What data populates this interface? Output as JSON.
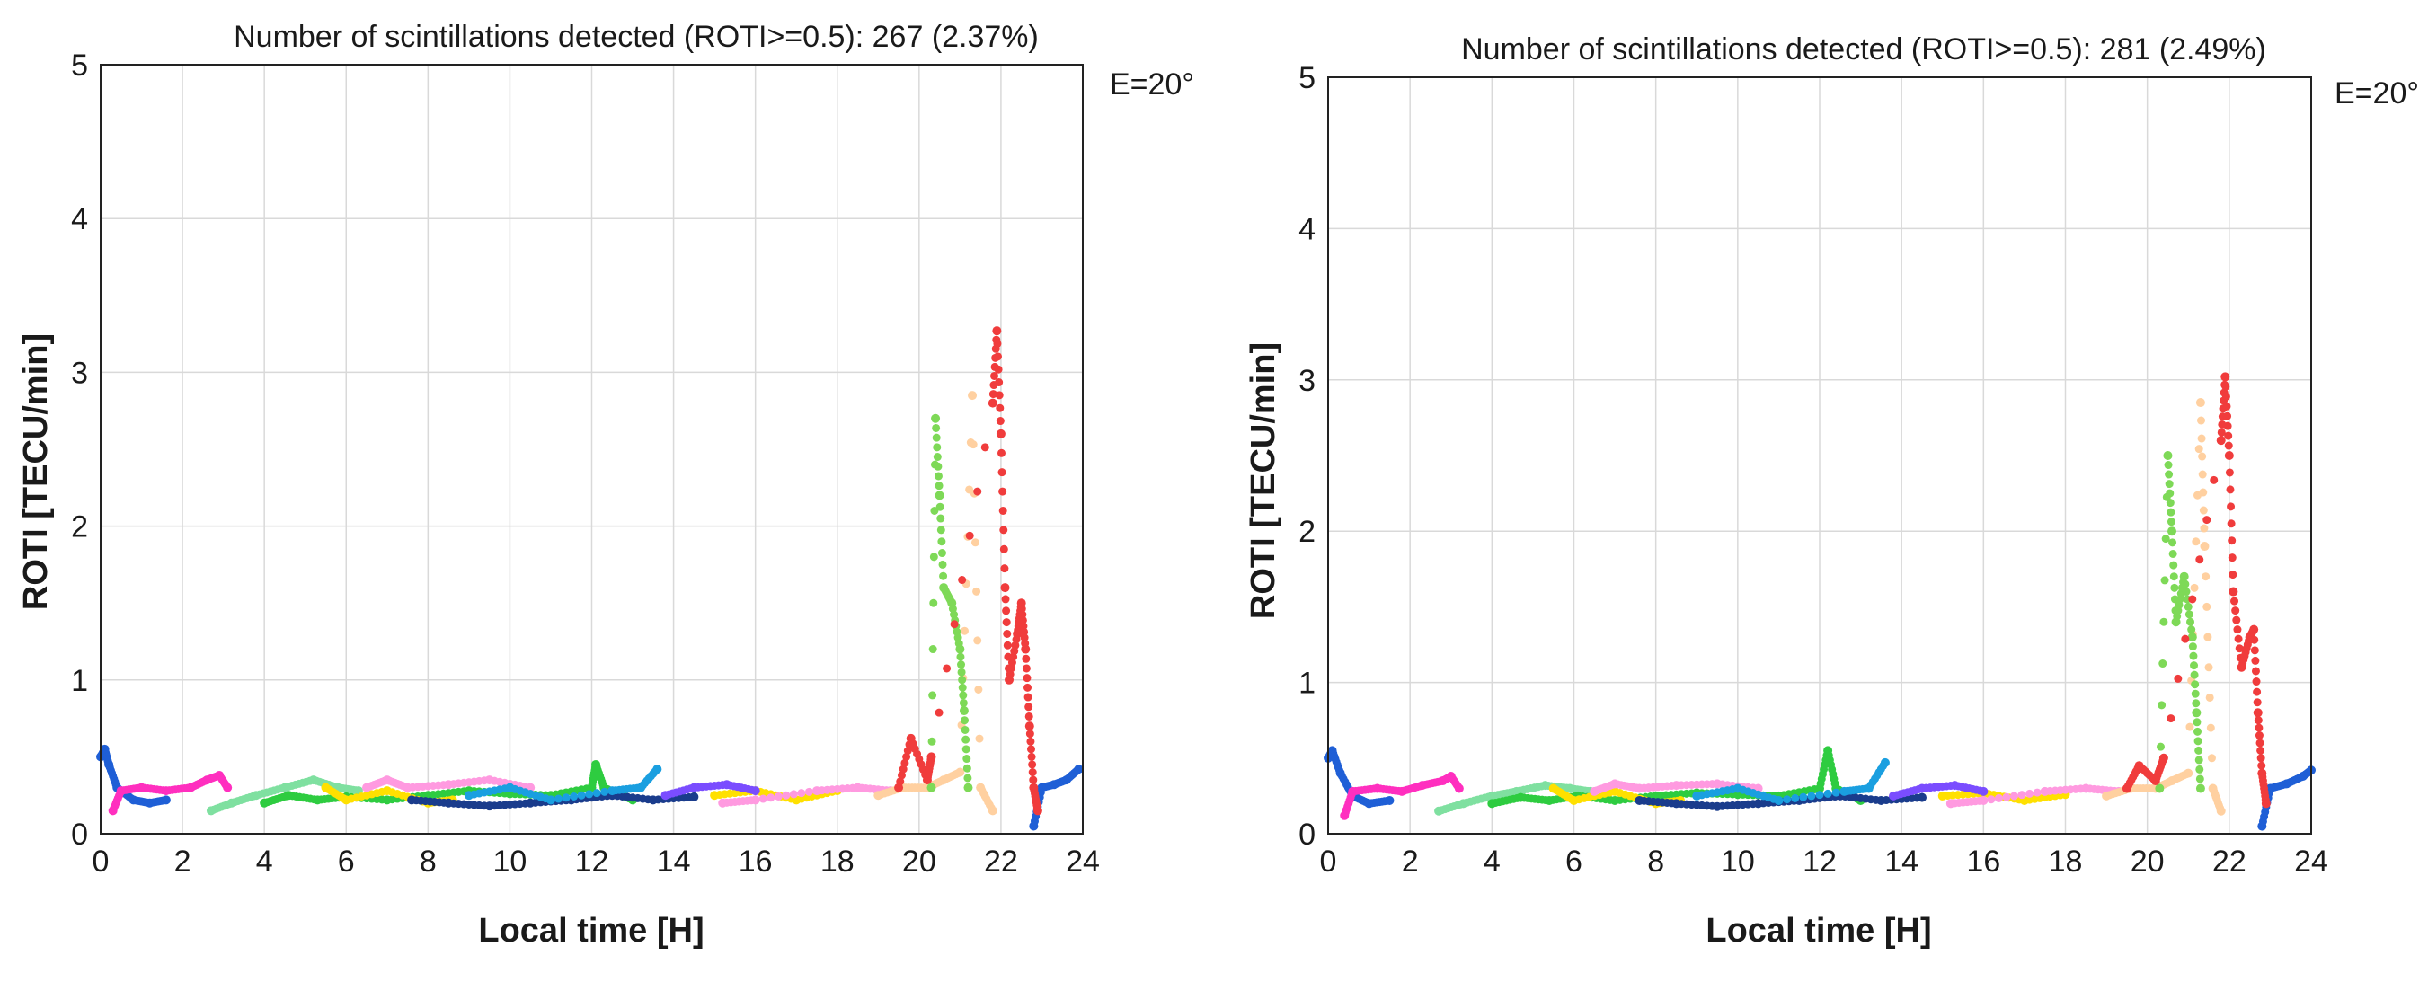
{
  "chart_data": [
    {
      "type": "scatter",
      "title": "Number of scintillations detected (ROTI>=0.5): 267 (2.37%)",
      "xlabel": "Local time [H]",
      "ylabel": "ROTI [TECU/min]",
      "xlim": [
        0,
        24
      ],
      "ylim": [
        0,
        5
      ],
      "xticks": [
        0,
        2,
        4,
        6,
        8,
        10,
        12,
        14,
        16,
        18,
        20,
        22,
        24
      ],
      "yticks": [
        0,
        1,
        2,
        3,
        4,
        5
      ],
      "grid": true,
      "annotation": "E=20°",
      "series": [
        {
          "name": "sat-blue-dark",
          "color": "#1f5fd6",
          "points": [
            [
              0,
              0.5
            ],
            [
              0.1,
              0.55
            ],
            [
              0.2,
              0.45
            ],
            [
              0.4,
              0.3
            ],
            [
              0.8,
              0.22
            ],
            [
              1.2,
              0.2
            ],
            [
              1.6,
              0.22
            ],
            [
              22.8,
              0.05
            ],
            [
              23,
              0.3
            ],
            [
              23.3,
              0.32
            ],
            [
              23.6,
              0.35
            ],
            [
              23.9,
              0.42
            ]
          ]
        },
        {
          "name": "sat-magenta",
          "color": "#ff2fbf",
          "points": [
            [
              0.3,
              0.15
            ],
            [
              0.5,
              0.28
            ],
            [
              1,
              0.3
            ],
            [
              1.6,
              0.28
            ],
            [
              2.2,
              0.3
            ],
            [
              2.6,
              0.35
            ],
            [
              2.9,
              0.38
            ],
            [
              3.1,
              0.3
            ]
          ]
        },
        {
          "name": "sat-green-light",
          "color": "#7fe0a0",
          "points": [
            [
              2.7,
              0.15
            ],
            [
              3.2,
              0.2
            ],
            [
              3.8,
              0.25
            ],
            [
              4.5,
              0.3
            ],
            [
              5.2,
              0.35
            ],
            [
              5.8,
              0.3
            ],
            [
              6.3,
              0.28
            ]
          ]
        },
        {
          "name": "sat-green",
          "color": "#2ecc40",
          "points": [
            [
              4,
              0.2
            ],
            [
              4.6,
              0.25
            ],
            [
              5.3,
              0.22
            ],
            [
              6,
              0.24
            ],
            [
              7,
              0.22
            ],
            [
              8,
              0.25
            ],
            [
              9,
              0.28
            ],
            [
              10,
              0.26
            ],
            [
              11,
              0.25
            ],
            [
              12,
              0.3
            ],
            [
              12.1,
              0.45
            ],
            [
              12.3,
              0.3
            ],
            [
              13,
              0.22
            ]
          ]
        },
        {
          "name": "sat-yellow",
          "color": "#ffe000",
          "points": [
            [
              5.5,
              0.3
            ],
            [
              6,
              0.22
            ],
            [
              7,
              0.28
            ],
            [
              8,
              0.2
            ],
            [
              8.6,
              0.22
            ],
            [
              15,
              0.25
            ],
            [
              16,
              0.28
            ],
            [
              17,
              0.22
            ],
            [
              18,
              0.28
            ]
          ]
        },
        {
          "name": "sat-pink",
          "color": "#ff9ae0",
          "points": [
            [
              6.5,
              0.3
            ],
            [
              7,
              0.35
            ],
            [
              7.5,
              0.3
            ],
            [
              8.5,
              0.32
            ],
            [
              9.5,
              0.35
            ],
            [
              10.5,
              0.3
            ],
            [
              15.2,
              0.2
            ],
            [
              16,
              0.22
            ],
            [
              17.5,
              0.28
            ],
            [
              18.5,
              0.3
            ],
            [
              19.3,
              0.28
            ]
          ]
        },
        {
          "name": "sat-navy",
          "color": "#1a3c8c",
          "points": [
            [
              7.6,
              0.22
            ],
            [
              8.5,
              0.2
            ],
            [
              9.5,
              0.18
            ],
            [
              10.5,
              0.2
            ],
            [
              11.5,
              0.22
            ],
            [
              12.5,
              0.25
            ],
            [
              13.5,
              0.22
            ],
            [
              14.5,
              0.24
            ]
          ]
        },
        {
          "name": "sat-cyan",
          "color": "#1a9fe0",
          "points": [
            [
              9,
              0.25
            ],
            [
              10,
              0.3
            ],
            [
              11,
              0.22
            ],
            [
              12.5,
              0.28
            ],
            [
              13.2,
              0.3
            ],
            [
              13.6,
              0.42
            ]
          ]
        },
        {
          "name": "sat-purple",
          "color": "#7a4dff",
          "points": [
            [
              13.8,
              0.25
            ],
            [
              14.5,
              0.3
            ],
            [
              15.3,
              0.32
            ],
            [
              16,
              0.28
            ]
          ]
        },
        {
          "name": "sat-peach",
          "color": "#ffd0a0",
          "points": [
            [
              19,
              0.25
            ],
            [
              19.6,
              0.3
            ],
            [
              20.2,
              0.3
            ],
            [
              20.6,
              0.35
            ],
            [
              21,
              0.4
            ],
            [
              21.3,
              2.85
            ],
            [
              21.5,
              0.3
            ],
            [
              21.8,
              0.15
            ]
          ]
        },
        {
          "name": "sat-lime",
          "color": "#7ed957",
          "points": [
            [
              20.3,
              0.3
            ],
            [
              20.4,
              2.7
            ],
            [
              20.5,
              2.2
            ],
            [
              20.6,
              1.6
            ],
            [
              20.8,
              1.5
            ],
            [
              21,
              1.2
            ],
            [
              21.1,
              0.8
            ],
            [
              21.2,
              0.3
            ]
          ]
        },
        {
          "name": "sat-red",
          "color": "#f03c3c",
          "points": [
            [
              19.5,
              0.3
            ],
            [
              19.8,
              0.62
            ],
            [
              20.2,
              0.35
            ],
            [
              20.3,
              0.5
            ],
            [
              21.8,
              2.8
            ],
            [
              21.9,
              3.27
            ],
            [
              22,
              2.6
            ],
            [
              22.1,
              1.6
            ],
            [
              22.2,
              1.0
            ],
            [
              22.4,
              1.3
            ],
            [
              22.5,
              1.5
            ],
            [
              22.6,
              1.2
            ],
            [
              22.7,
              0.7
            ],
            [
              22.8,
              0.3
            ],
            [
              22.9,
              0.15
            ]
          ]
        }
      ]
    },
    {
      "type": "scatter",
      "title": "Number of scintillations detected (ROTI>=0.5): 281 (2.49%)",
      "xlabel": "Local time [H]",
      "ylabel": "ROTI [TECU/min]",
      "xlim": [
        0,
        24
      ],
      "ylim": [
        0,
        5
      ],
      "xticks": [
        0,
        2,
        4,
        6,
        8,
        10,
        12,
        14,
        16,
        18,
        20,
        22,
        24
      ],
      "yticks": [
        0,
        1,
        2,
        3,
        4,
        5
      ],
      "grid": true,
      "annotation": "E=20°",
      "series": [
        {
          "name": "sat-blue-dark",
          "color": "#1f5fd6",
          "points": [
            [
              0,
              0.5
            ],
            [
              0.1,
              0.55
            ],
            [
              0.3,
              0.4
            ],
            [
              0.6,
              0.25
            ],
            [
              1,
              0.2
            ],
            [
              1.5,
              0.22
            ],
            [
              22.8,
              0.05
            ],
            [
              23,
              0.3
            ],
            [
              23.4,
              0.33
            ],
            [
              23.8,
              0.38
            ],
            [
              24,
              0.42
            ]
          ]
        },
        {
          "name": "sat-magenta",
          "color": "#ff2fbf",
          "points": [
            [
              0.4,
              0.12
            ],
            [
              0.6,
              0.28
            ],
            [
              1.2,
              0.3
            ],
            [
              1.8,
              0.28
            ],
            [
              2.3,
              0.32
            ],
            [
              2.8,
              0.35
            ],
            [
              3,
              0.38
            ],
            [
              3.2,
              0.3
            ]
          ]
        },
        {
          "name": "sat-green-light",
          "color": "#7fe0a0",
          "points": [
            [
              2.7,
              0.15
            ],
            [
              3.3,
              0.2
            ],
            [
              4,
              0.25
            ],
            [
              4.6,
              0.28
            ],
            [
              5.3,
              0.32
            ],
            [
              5.9,
              0.3
            ],
            [
              6.4,
              0.28
            ]
          ]
        },
        {
          "name": "sat-green",
          "color": "#2ecc40",
          "points": [
            [
              4,
              0.2
            ],
            [
              4.7,
              0.24
            ],
            [
              5.4,
              0.22
            ],
            [
              6.1,
              0.25
            ],
            [
              7,
              0.22
            ],
            [
              8,
              0.25
            ],
            [
              9,
              0.27
            ],
            [
              10,
              0.26
            ],
            [
              11,
              0.25
            ],
            [
              12,
              0.3
            ],
            [
              12.2,
              0.55
            ],
            [
              12.4,
              0.3
            ],
            [
              13,
              0.22
            ]
          ]
        },
        {
          "name": "sat-yellow",
          "color": "#ffe000",
          "points": [
            [
              5.5,
              0.3
            ],
            [
              6,
              0.22
            ],
            [
              7,
              0.28
            ],
            [
              8,
              0.2
            ],
            [
              8.6,
              0.22
            ],
            [
              15,
              0.25
            ],
            [
              16,
              0.27
            ],
            [
              17,
              0.22
            ],
            [
              18,
              0.26
            ]
          ]
        },
        {
          "name": "sat-pink",
          "color": "#ff9ae0",
          "points": [
            [
              6.5,
              0.28
            ],
            [
              7,
              0.33
            ],
            [
              7.6,
              0.3
            ],
            [
              8.5,
              0.32
            ],
            [
              9.5,
              0.33
            ],
            [
              10.5,
              0.3
            ],
            [
              15.2,
              0.2
            ],
            [
              16,
              0.22
            ],
            [
              17.5,
              0.28
            ],
            [
              18.5,
              0.3
            ],
            [
              19.3,
              0.28
            ]
          ]
        },
        {
          "name": "sat-navy",
          "color": "#1a3c8c",
          "points": [
            [
              7.6,
              0.22
            ],
            [
              8.5,
              0.2
            ],
            [
              9.5,
              0.18
            ],
            [
              10.5,
              0.2
            ],
            [
              11.5,
              0.22
            ],
            [
              12.5,
              0.25
            ],
            [
              13.5,
              0.22
            ],
            [
              14.5,
              0.24
            ]
          ]
        },
        {
          "name": "sat-cyan",
          "color": "#1a9fe0",
          "points": [
            [
              9,
              0.25
            ],
            [
              10,
              0.3
            ],
            [
              11,
              0.22
            ],
            [
              12.6,
              0.28
            ],
            [
              13.2,
              0.3
            ],
            [
              13.6,
              0.47
            ]
          ]
        },
        {
          "name": "sat-purple",
          "color": "#7a4dff",
          "points": [
            [
              13.8,
              0.25
            ],
            [
              14.5,
              0.3
            ],
            [
              15.3,
              0.32
            ],
            [
              16,
              0.28
            ]
          ]
        },
        {
          "name": "sat-peach",
          "color": "#ffd0a0",
          "points": [
            [
              19,
              0.25
            ],
            [
              19.6,
              0.3
            ],
            [
              20.2,
              0.3
            ],
            [
              20.6,
              0.35
            ],
            [
              21,
              0.4
            ],
            [
              21.3,
              2.85
            ],
            [
              21.4,
              1.9
            ],
            [
              21.6,
              0.3
            ],
            [
              21.8,
              0.15
            ]
          ]
        },
        {
          "name": "sat-lime",
          "color": "#7ed957",
          "points": [
            [
              20.3,
              0.3
            ],
            [
              20.5,
              2.5
            ],
            [
              20.6,
              2.0
            ],
            [
              20.7,
              1.4
            ],
            [
              20.9,
              1.7
            ],
            [
              21.1,
              1.3
            ],
            [
              21.2,
              0.8
            ],
            [
              21.3,
              0.3
            ]
          ]
        },
        {
          "name": "sat-red",
          "color": "#f03c3c",
          "points": [
            [
              19.5,
              0.3
            ],
            [
              19.8,
              0.45
            ],
            [
              20.2,
              0.35
            ],
            [
              20.4,
              0.5
            ],
            [
              21.8,
              2.6
            ],
            [
              21.9,
              3.02
            ],
            [
              22,
              2.5
            ],
            [
              22.1,
              1.6
            ],
            [
              22.3,
              1.1
            ],
            [
              22.5,
              1.3
            ],
            [
              22.6,
              1.35
            ],
            [
              22.7,
              0.8
            ],
            [
              22.8,
              0.4
            ],
            [
              22.9,
              0.2
            ]
          ]
        }
      ]
    }
  ]
}
